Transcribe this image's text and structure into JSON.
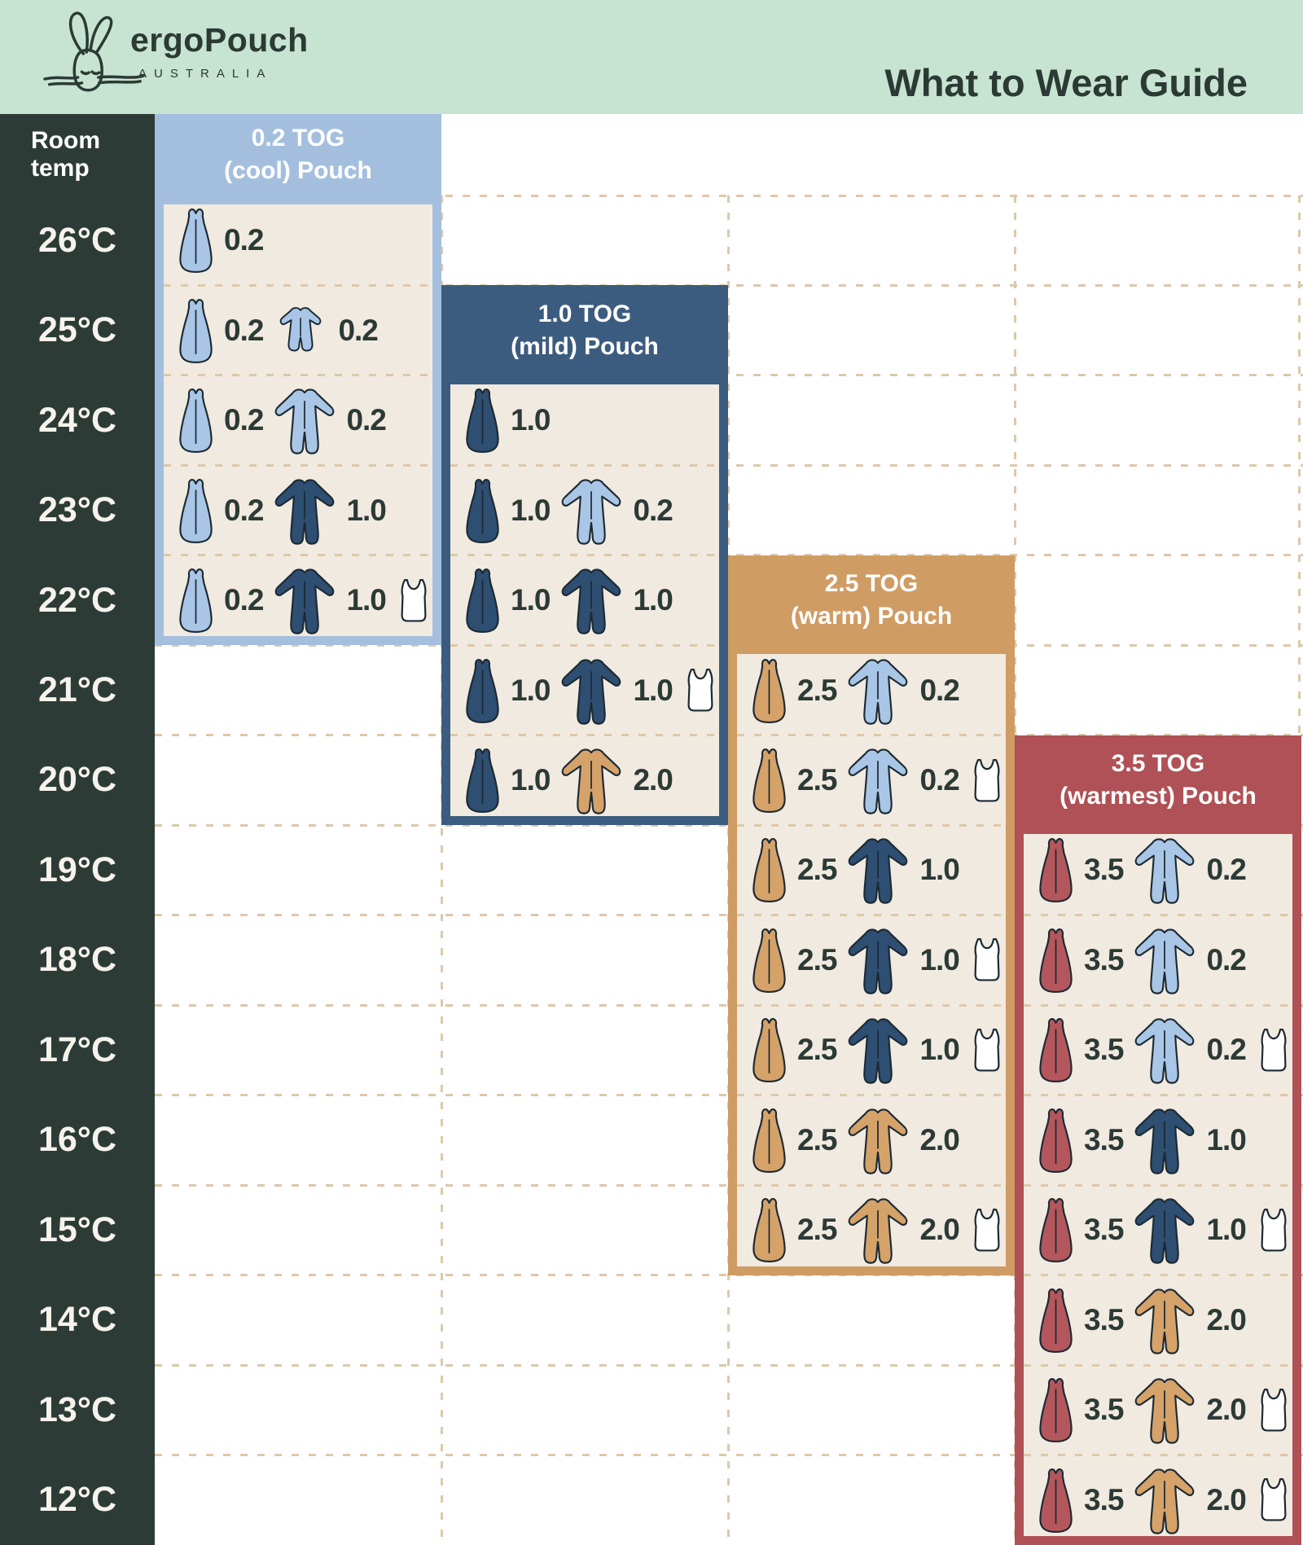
{
  "palette": {
    "mint": "#c7e3d1",
    "dark": "#2d3b37",
    "cream": "#f1eae0",
    "lightblue": "#a9c6e6",
    "lightblue_header": "#a4bfde",
    "navy": "#2e4e72",
    "navy_header": "#3c5c7f",
    "tan": "#d5a269",
    "tan_header": "#cf9c63",
    "red": "#b4575c",
    "red_header": "#af5156",
    "white": "#ffffff",
    "dash": "#dcc8ab",
    "dash_dark": "#d5c9ae",
    "text_dark": "#2c3a36",
    "text_light": "#f6f3ec"
  },
  "header": {
    "brand": "ergoPouch",
    "brand_sub": "AUSTRALIA",
    "title": "What to Wear Guide"
  },
  "table": {
    "room_temp_label": "Room temp",
    "temps": [
      "26°C",
      "25°C",
      "24°C",
      "23°C",
      "22°C",
      "21°C",
      "20°C",
      "19°C",
      "18°C",
      "17°C",
      "16°C",
      "15°C",
      "14°C",
      "13°C",
      "12°C"
    ],
    "blocks": [
      {
        "id": "0-2",
        "title": "0.2 TOG",
        "subtitle": "(cool) Pouch",
        "column": 0,
        "color": "lightblue_header",
        "header_in_band": true,
        "rows": [
          {
            "temp": "26°C",
            "items": [
              {
                "type": "pouch",
                "color": "lightblue",
                "tog": "0.2"
              }
            ]
          },
          {
            "temp": "25°C",
            "items": [
              {
                "type": "pouch",
                "color": "lightblue",
                "tog": "0.2"
              },
              {
                "type": "romper_short",
                "color": "lightblue",
                "tog": "0.2"
              }
            ]
          },
          {
            "temp": "24°C",
            "items": [
              {
                "type": "pouch",
                "color": "lightblue",
                "tog": "0.2"
              },
              {
                "type": "romper",
                "color": "lightblue",
                "tog": "0.2"
              }
            ]
          },
          {
            "temp": "23°C",
            "items": [
              {
                "type": "pouch",
                "color": "lightblue",
                "tog": "0.2"
              },
              {
                "type": "romper",
                "color": "navy",
                "tog": "1.0"
              }
            ]
          },
          {
            "temp": "22°C",
            "items": [
              {
                "type": "pouch",
                "color": "lightblue",
                "tog": "0.2"
              },
              {
                "type": "romper",
                "color": "navy",
                "tog": "1.0"
              },
              {
                "type": "singlet",
                "color": "white"
              }
            ]
          }
        ]
      },
      {
        "id": "1-0",
        "title": "1.0 TOG",
        "subtitle": "(mild) Pouch",
        "column": 1,
        "color": "navy_header",
        "header_in_band": false,
        "rows": [
          {
            "temp": "24°C",
            "items": [
              {
                "type": "pouch",
                "color": "navy",
                "tog": "1.0"
              }
            ]
          },
          {
            "temp": "23°C",
            "items": [
              {
                "type": "pouch",
                "color": "navy",
                "tog": "1.0"
              },
              {
                "type": "romper",
                "color": "lightblue",
                "tog": "0.2"
              }
            ]
          },
          {
            "temp": "22°C",
            "items": [
              {
                "type": "pouch",
                "color": "navy",
                "tog": "1.0"
              },
              {
                "type": "romper",
                "color": "navy",
                "tog": "1.0"
              }
            ]
          },
          {
            "temp": "21°C",
            "items": [
              {
                "type": "pouch",
                "color": "navy",
                "tog": "1.0"
              },
              {
                "type": "romper",
                "color": "navy",
                "tog": "1.0"
              },
              {
                "type": "singlet",
                "color": "white"
              }
            ]
          },
          {
            "temp": "20°C",
            "items": [
              {
                "type": "pouch",
                "color": "navy",
                "tog": "1.0"
              },
              {
                "type": "romper",
                "color": "tan",
                "tog": "2.0"
              }
            ]
          }
        ]
      },
      {
        "id": "2-5",
        "title": "2.5 TOG",
        "subtitle": "(warm) Pouch",
        "column": 2,
        "color": "tan_header",
        "header_in_band": false,
        "rows": [
          {
            "temp": "21°C",
            "items": [
              {
                "type": "pouch",
                "color": "tan",
                "tog": "2.5"
              },
              {
                "type": "romper",
                "color": "lightblue",
                "tog": "0.2"
              }
            ]
          },
          {
            "temp": "20°C",
            "items": [
              {
                "type": "pouch",
                "color": "tan",
                "tog": "2.5"
              },
              {
                "type": "romper",
                "color": "lightblue",
                "tog": "0.2"
              },
              {
                "type": "singlet",
                "color": "white"
              }
            ]
          },
          {
            "temp": "19°C",
            "items": [
              {
                "type": "pouch",
                "color": "tan",
                "tog": "2.5"
              },
              {
                "type": "romper",
                "color": "navy",
                "tog": "1.0"
              }
            ]
          },
          {
            "temp": "18°C",
            "items": [
              {
                "type": "pouch",
                "color": "tan",
                "tog": "2.5"
              },
              {
                "type": "romper",
                "color": "navy",
                "tog": "1.0"
              },
              {
                "type": "singlet",
                "color": "white"
              }
            ]
          },
          {
            "temp": "17°C",
            "items": [
              {
                "type": "pouch",
                "color": "tan",
                "tog": "2.5"
              },
              {
                "type": "romper",
                "color": "navy",
                "tog": "1.0"
              },
              {
                "type": "singlet",
                "color": "white"
              }
            ]
          },
          {
            "temp": "16°C",
            "items": [
              {
                "type": "pouch",
                "color": "tan",
                "tog": "2.5"
              },
              {
                "type": "romper",
                "color": "tan",
                "tog": "2.0"
              }
            ]
          },
          {
            "temp": "15°C",
            "items": [
              {
                "type": "pouch",
                "color": "tan",
                "tog": "2.5"
              },
              {
                "type": "romper",
                "color": "tan",
                "tog": "2.0"
              },
              {
                "type": "singlet",
                "color": "white"
              }
            ]
          }
        ]
      },
      {
        "id": "3-5",
        "title": "3.5 TOG",
        "subtitle": "(warmest) Pouch",
        "column": 3,
        "color": "red_header",
        "header_in_band": false,
        "rows": [
          {
            "temp": "19°C",
            "items": [
              {
                "type": "pouch",
                "color": "red",
                "tog": "3.5"
              },
              {
                "type": "romper",
                "color": "lightblue",
                "tog": "0.2"
              }
            ]
          },
          {
            "temp": "18°C",
            "items": [
              {
                "type": "pouch",
                "color": "red",
                "tog": "3.5"
              },
              {
                "type": "romper",
                "color": "lightblue",
                "tog": "0.2"
              }
            ]
          },
          {
            "temp": "17°C",
            "items": [
              {
                "type": "pouch",
                "color": "red",
                "tog": "3.5"
              },
              {
                "type": "romper",
                "color": "lightblue",
                "tog": "0.2"
              },
              {
                "type": "singlet",
                "color": "white"
              }
            ]
          },
          {
            "temp": "16°C",
            "items": [
              {
                "type": "pouch",
                "color": "red",
                "tog": "3.5"
              },
              {
                "type": "romper",
                "color": "navy",
                "tog": "1.0"
              }
            ]
          },
          {
            "temp": "15°C",
            "items": [
              {
                "type": "pouch",
                "color": "red",
                "tog": "3.5"
              },
              {
                "type": "romper",
                "color": "navy",
                "tog": "1.0"
              },
              {
                "type": "singlet",
                "color": "white"
              }
            ]
          },
          {
            "temp": "14°C",
            "items": [
              {
                "type": "pouch",
                "color": "red",
                "tog": "3.5"
              },
              {
                "type": "romper",
                "color": "tan",
                "tog": "2.0"
              }
            ]
          },
          {
            "temp": "13°C",
            "items": [
              {
                "type": "pouch",
                "color": "red",
                "tog": "3.5"
              },
              {
                "type": "romper",
                "color": "tan",
                "tog": "2.0"
              },
              {
                "type": "singlet",
                "color": "white"
              }
            ]
          },
          {
            "temp": "12°C",
            "items": [
              {
                "type": "pouch",
                "color": "red",
                "tog": "3.5"
              },
              {
                "type": "romper",
                "color": "tan",
                "tog": "2.0"
              },
              {
                "type": "singlet",
                "color": "white"
              }
            ]
          }
        ]
      }
    ]
  },
  "chart_data": {
    "type": "table",
    "title": "What to Wear Guide",
    "row_label": "Room temp",
    "rows": [
      "26°C",
      "25°C",
      "24°C",
      "23°C",
      "22°C",
      "21°C",
      "20°C",
      "19°C",
      "18°C",
      "17°C",
      "16°C",
      "15°C",
      "14°C",
      "13°C",
      "12°C"
    ],
    "columns": [
      {
        "label": "0.2 TOG (cool) Pouch",
        "cells": {
          "26°C": "pouch 0.2",
          "25°C": "pouch 0.2 + short romper 0.2",
          "24°C": "pouch 0.2 + romper 0.2",
          "23°C": "pouch 0.2 + romper 1.0",
          "22°C": "pouch 0.2 + romper 1.0 + singlet"
        }
      },
      {
        "label": "1.0 TOG (mild) Pouch",
        "cells": {
          "24°C": "pouch 1.0",
          "23°C": "pouch 1.0 + romper 0.2",
          "22°C": "pouch 1.0 + romper 1.0",
          "21°C": "pouch 1.0 + romper 1.0 + singlet",
          "20°C": "pouch 1.0 + romper 2.0"
        }
      },
      {
        "label": "2.5 TOG (warm) Pouch",
        "cells": {
          "21°C": "pouch 2.5 + romper 0.2",
          "20°C": "pouch 2.5 + romper 0.2 + singlet",
          "19°C": "pouch 2.5 + romper 1.0",
          "18°C": "pouch 2.5 + romper 1.0 + singlet",
          "17°C": "pouch 2.5 + romper 1.0 + singlet",
          "16°C": "pouch 2.5 + romper 2.0",
          "15°C": "pouch 2.5 + romper 2.0 + singlet"
        }
      },
      {
        "label": "3.5 TOG (warmest) Pouch",
        "cells": {
          "19°C": "pouch 3.5 + romper 0.2",
          "18°C": "pouch 3.5 + romper 0.2",
          "17°C": "pouch 3.5 + romper 0.2 + singlet",
          "16°C": "pouch 3.5 + romper 1.0",
          "15°C": "pouch 3.5 + romper 1.0 + singlet",
          "14°C": "pouch 3.5 + romper 2.0",
          "13°C": "pouch 3.5 + romper 2.0 + singlet",
          "12°C": "pouch 3.5 + romper 2.0 + singlet"
        }
      }
    ]
  }
}
